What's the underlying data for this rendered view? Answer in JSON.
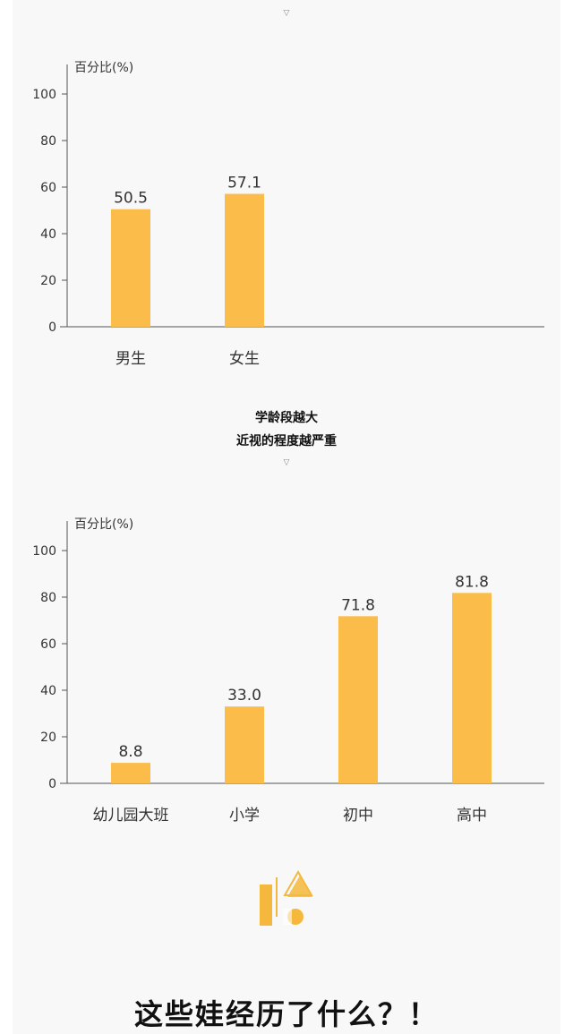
{
  "markers": [
    "▽",
    "▽"
  ],
  "captions": [
    "学龄段越大",
    "近视的程度越严重"
  ],
  "headline": "这些娃经历了什么？！",
  "colors": {
    "bar": "#FBBC4A",
    "axis": "#555555",
    "text": "#333333",
    "accent": "#F5B83C"
  },
  "chart_data": [
    {
      "type": "bar",
      "title": "",
      "xlabel": "",
      "ylabel": "百分比(%)",
      "ylim": [
        0,
        100
      ],
      "yticks": [
        0,
        20,
        40,
        60,
        80,
        100
      ],
      "categories": [
        "男生",
        "女生"
      ],
      "values": [
        50.5,
        57.1
      ],
      "value_labels": [
        "50.5",
        "57.1"
      ],
      "grid": false
    },
    {
      "type": "bar",
      "title": "",
      "xlabel": "",
      "ylabel": "百分比(%)",
      "ylim": [
        0,
        100
      ],
      "yticks": [
        0,
        20,
        40,
        60,
        80,
        100
      ],
      "categories": [
        "幼儿园大班",
        "小学",
        "初中",
        "高中"
      ],
      "values": [
        8.8,
        33.0,
        71.8,
        81.8
      ],
      "value_labels": [
        "8.8",
        "33.0",
        "71.8",
        "81.8"
      ],
      "grid": false
    }
  ]
}
